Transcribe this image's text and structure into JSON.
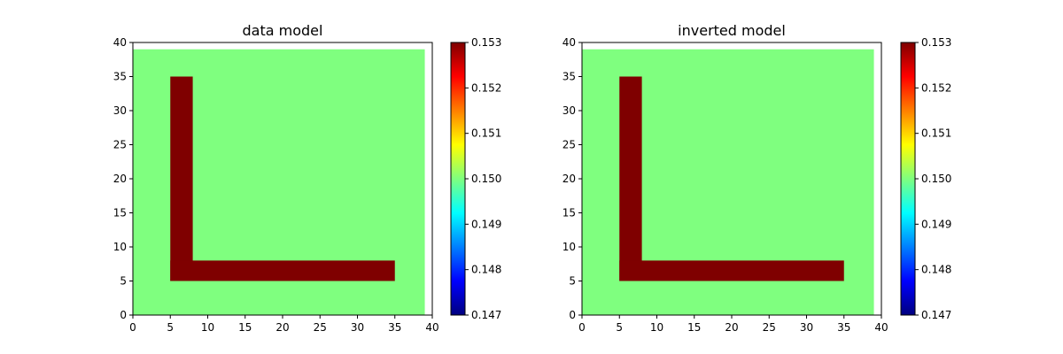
{
  "chart_data": [
    {
      "type": "heatmap",
      "title": "data model",
      "xlabel": "",
      "ylabel": "",
      "xlim": [
        0,
        40
      ],
      "ylim": [
        0,
        40
      ],
      "xticks": [
        0,
        5,
        10,
        15,
        20,
        25,
        30,
        35,
        40
      ],
      "yticks": [
        0,
        5,
        10,
        15,
        20,
        25,
        30,
        35,
        40
      ],
      "grid_extent": {
        "x": [
          0,
          39
        ],
        "y": [
          0,
          39
        ]
      },
      "background_value": 0.15,
      "anomaly_value": 0.153,
      "anomaly_shape": "L",
      "anomaly_regions": [
        {
          "x": [
            5,
            8
          ],
          "y": [
            5,
            35
          ]
        },
        {
          "x": [
            5,
            35
          ],
          "y": [
            5,
            8
          ]
        }
      ],
      "colormap": "jet",
      "colorbar": {
        "min": 0.147,
        "max": 0.153,
        "ticks": [
          "0.147",
          "0.148",
          "0.149",
          "0.150",
          "0.151",
          "0.152",
          "0.153"
        ]
      }
    },
    {
      "type": "heatmap",
      "title": "inverted model",
      "xlabel": "",
      "ylabel": "",
      "xlim": [
        0,
        40
      ],
      "ylim": [
        0,
        40
      ],
      "xticks": [
        0,
        5,
        10,
        15,
        20,
        25,
        30,
        35,
        40
      ],
      "yticks": [
        0,
        5,
        10,
        15,
        20,
        25,
        30,
        35,
        40
      ],
      "grid_extent": {
        "x": [
          0,
          39
        ],
        "y": [
          0,
          39
        ]
      },
      "background_value": 0.15,
      "anomaly_value": 0.153,
      "anomaly_shape": "L",
      "anomaly_regions": [
        {
          "x": [
            5,
            8
          ],
          "y": [
            5,
            35
          ]
        },
        {
          "x": [
            5,
            35
          ],
          "y": [
            5,
            8
          ]
        }
      ],
      "colormap": "jet",
      "colorbar": {
        "min": 0.147,
        "max": 0.153,
        "ticks": [
          "0.147",
          "0.148",
          "0.149",
          "0.150",
          "0.151",
          "0.152",
          "0.153"
        ]
      }
    }
  ]
}
